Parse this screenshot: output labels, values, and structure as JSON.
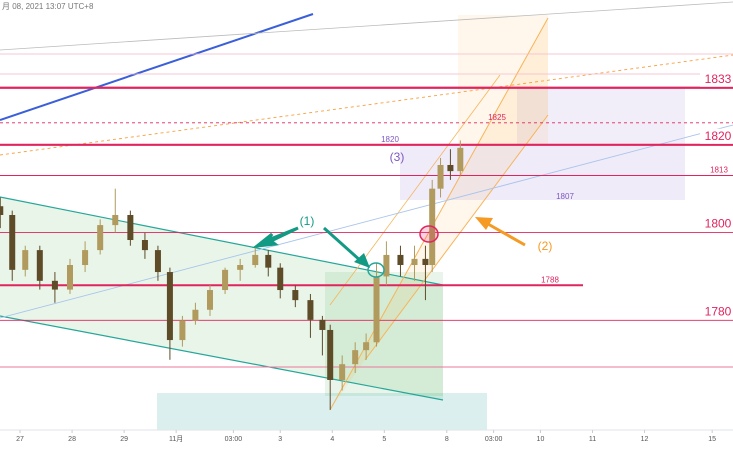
{
  "header": {
    "timestamp": "月 08, 2021 13:07 UTC+8"
  },
  "chart_data": {
    "type": "candlestick",
    "x": [
      -0.38,
      -0.15,
      0.1,
      0.38,
      0.67,
      0.96,
      1.25,
      1.54,
      1.83,
      2.12,
      2.4,
      2.65,
      2.88,
      3.12,
      3.37,
      3.65,
      3.94,
      4.23,
      4.52,
      4.77,
      5.0,
      5.29,
      5.58,
      5.81,
      5.96,
      6.19,
      6.44,
      6.65,
      6.85,
      7.04,
      7.31,
      7.58,
      7.79,
      7.92,
      8.08,
      8.27,
      8.46
    ],
    "open": [
      1806,
      1804,
      1791.5,
      1796,
      1789,
      1787,
      1792.6,
      1796,
      1801.7,
      1804,
      1798.3,
      1796,
      1791,
      1775.5,
      1780,
      1782.4,
      1786.9,
      1791.5,
      1792.6,
      1794.9,
      1792,
      1786.9,
      1784.6,
      1780.1,
      1777.8,
      1766.4,
      1770,
      1773.2,
      1775,
      1790,
      1794.9,
      1792.6,
      1794,
      1792.6,
      1810,
      1815.4,
      1814
    ],
    "high": [
      1808,
      1805,
      1797,
      1797,
      1791,
      1794,
      1798,
      1803,
      1810,
      1805,
      1800,
      1797,
      1792,
      1781,
      1784,
      1788,
      1792,
      1794,
      1797,
      1796,
      1793,
      1788,
      1786,
      1781,
      1779,
      1772,
      1775,
      1777,
      1793,
      1798,
      1797,
      1797,
      1797,
      1812,
      1817,
      1819,
      1821
    ],
    "low": [
      1801,
      1789,
      1790,
      1787,
      1784,
      1786,
      1791,
      1795,
      1800,
      1797,
      1794,
      1789,
      1771,
      1774,
      1779,
      1781,
      1786,
      1789,
      1792,
      1790,
      1785,
      1783,
      1776,
      1772,
      1759.6,
      1764,
      1768,
      1771,
      1774,
      1788,
      1790,
      1789,
      1784.6,
      1791,
      1808,
      1812,
      1813
    ],
    "close": [
      1804,
      1791.5,
      1796,
      1789,
      1787,
      1792.6,
      1796,
      1801.7,
      1804,
      1798.3,
      1796,
      1791,
      1775.5,
      1780,
      1782.4,
      1786.9,
      1791.5,
      1792.6,
      1794.9,
      1792,
      1786.9,
      1784.6,
      1780.1,
      1777.8,
      1766.4,
      1770,
      1773.2,
      1775,
      1790,
      1794.9,
      1792.6,
      1794,
      1792.6,
      1810,
      1815.4,
      1814,
      1819.3
    ],
    "up_color": "#b09a5e",
    "down_color": "#5e4b28",
    "xlim": [
      -0.385,
      13.7
    ],
    "ylim": [
      1755,
      1853
    ],
    "xticks": [
      {
        "value": 0,
        "label": "27"
      },
      {
        "value": 1,
        "label": "28"
      },
      {
        "value": 2,
        "label": "29"
      },
      {
        "value": 3,
        "label": "11月"
      },
      {
        "value": 4.1,
        "label": "03:00"
      },
      {
        "value": 5,
        "label": "3"
      },
      {
        "value": 6,
        "label": "4"
      },
      {
        "value": 7,
        "label": "5"
      },
      {
        "value": 8.2,
        "label": "8"
      },
      {
        "value": 9.1,
        "label": "03:00"
      },
      {
        "value": 10,
        "label": "10"
      },
      {
        "value": 11,
        "label": "11"
      },
      {
        "value": 12,
        "label": "12"
      },
      {
        "value": 13.3,
        "label": "15"
      }
    ],
    "levels": [
      {
        "value": 1833,
        "color": "#e0245e",
        "size": "large"
      },
      {
        "value": 1820,
        "color": "#e0245e",
        "size": "large"
      },
      {
        "value": 1813,
        "color": "#e0245e",
        "size": "small"
      },
      {
        "value": 1800,
        "color": "#e0245e",
        "size": "large"
      },
      {
        "value": 1788,
        "color": "#e0245e",
        "size": "small"
      },
      {
        "value": 1780,
        "color": "#e0245e",
        "size": "large"
      },
      {
        "value": 1825,
        "color": "#e0245e",
        "size": "small"
      },
      {
        "value": 1807,
        "color": "#7e57c2",
        "size": "small"
      },
      {
        "value": 1820,
        "color": "#7e57c2",
        "size": "small"
      }
    ],
    "annotations": [
      {
        "text": "(1)",
        "color": "#139a84"
      },
      {
        "text": "(2)",
        "color": "#f59a23"
      },
      {
        "text": "(3)",
        "color": "#7e57c2"
      }
    ]
  }
}
